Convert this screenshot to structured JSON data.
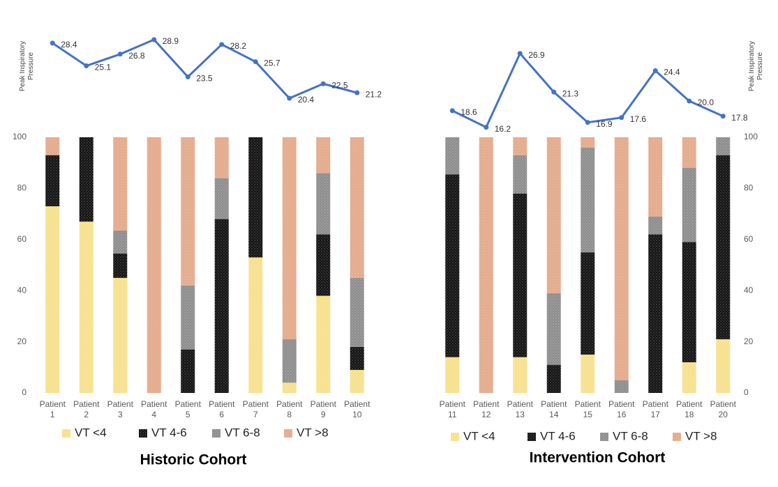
{
  "chart_data": [
    {
      "type": "bar",
      "stacked": true,
      "title": "Historic Cohort",
      "yaxis_side": "left",
      "categories": [
        "Patient 1",
        "Patient 2",
        "Patient 3",
        "Patient 4",
        "Patient 5",
        "Patient 6",
        "Patient 7",
        "Patient 8",
        "Patient 9",
        "Patient 10"
      ],
      "series": [
        {
          "name": "VT <4",
          "color": "#f7e08c",
          "values": [
            73,
            67,
            45,
            0,
            0,
            0,
            53,
            4,
            38,
            9
          ]
        },
        {
          "name": "VT 4-6",
          "color": "#111111",
          "values": [
            20,
            33,
            9.5,
            0,
            17,
            68,
            47,
            0,
            24,
            9
          ]
        },
        {
          "name": "VT 6-8",
          "color": "#8c8c8c",
          "values": [
            0,
            0,
            9,
            0,
            25,
            16,
            0,
            17,
            24,
            27
          ]
        },
        {
          "name": "VT >8",
          "color": "#e3a98a",
          "values": [
            7,
            0,
            36.5,
            100,
            58,
            16,
            0,
            79,
            14,
            55
          ]
        }
      ],
      "ylim": [
        0,
        100
      ],
      "yticks": [
        0,
        20,
        40,
        60,
        80,
        100
      ],
      "line": {
        "axis": "y2",
        "color": "#4472c4",
        "values": [
          28.4,
          25.1,
          26.8,
          28.9,
          23.5,
          28.2,
          25.7,
          20.4,
          22.5,
          21.2
        ],
        "value_labels": [
          "28.4",
          "25.1",
          "26.8",
          "28.9",
          "23.5",
          "28.2",
          "25.7",
          "20.4",
          "22.5",
          "21.2"
        ]
      },
      "y2label": "Peak Inspiratory Pressure",
      "y2lim": [
        10,
        30
      ]
    },
    {
      "type": "bar",
      "stacked": true,
      "title": "Intervention Cohort",
      "yaxis_side": "right",
      "categories": [
        "Patient 11",
        "Patient 12",
        "Patient 13",
        "Patient 14",
        "Patient 15",
        "Patient 16",
        "Patient 17",
        "Patient 18",
        "Patient 20"
      ],
      "series": [
        {
          "name": "VT <4",
          "color": "#f7e08c",
          "values": [
            14,
            0,
            14,
            0,
            15,
            0,
            0,
            12,
            21
          ]
        },
        {
          "name": "VT 4-6",
          "color": "#111111",
          "values": [
            71.5,
            0,
            64,
            11,
            40,
            0,
            62,
            47,
            72
          ]
        },
        {
          "name": "VT 6-8",
          "color": "#8c8c8c",
          "values": [
            14.5,
            0,
            15,
            28,
            41,
            5,
            7,
            29,
            7
          ]
        },
        {
          "name": "VT >8",
          "color": "#e3a98a",
          "values": [
            0,
            100,
            7,
            61,
            4,
            95,
            31,
            12,
            0
          ]
        }
      ],
      "ylim": [
        0,
        100
      ],
      "yticks": [
        0,
        20,
        40,
        60,
        80,
        100
      ],
      "line": {
        "axis": "y2",
        "color": "#4472c4",
        "values": [
          18.6,
          16.2,
          26.9,
          21.3,
          16.9,
          17.6,
          24.4,
          20.0,
          17.8
        ],
        "value_labels": [
          "18.6",
          "16.2",
          "26.9",
          "21.3",
          "16.9",
          "17.6",
          "24.4",
          "20.0",
          "17.8"
        ]
      },
      "y2label": "Peak Inspiratory Pressure",
      "y2lim": [
        10,
        30
      ]
    }
  ]
}
